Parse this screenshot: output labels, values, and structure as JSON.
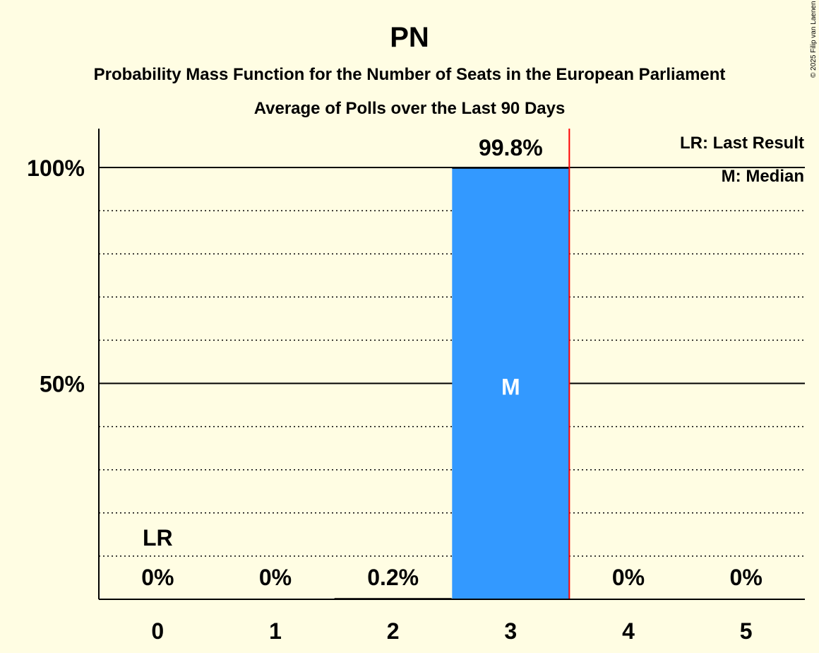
{
  "chart_data": {
    "type": "bar",
    "title": "PN",
    "subtitle": "Probability Mass Function for the Number of Seats in the European Parliament",
    "subtitle2": "Average of Polls over the Last 90 Days",
    "categories": [
      "0",
      "1",
      "2",
      "3",
      "4",
      "5"
    ],
    "values": [
      0,
      0,
      0.2,
      99.8,
      0,
      0
    ],
    "value_labels": [
      "0%",
      "0%",
      "0.2%",
      "99.8%",
      "0%",
      "0%"
    ],
    "ylim": [
      0,
      110
    ],
    "y_ticks": [
      {
        "value": 50,
        "label": "50%"
      },
      {
        "value": 100,
        "label": "100%"
      }
    ],
    "minor_grid": [
      10,
      20,
      30,
      40,
      60,
      70,
      80,
      90
    ],
    "last_result_index": 0,
    "last_result_label": "LR",
    "median_index": 3,
    "median_label": "M",
    "legend": [
      "LR: Last Result",
      "M: Median"
    ],
    "legend_position": "top-right",
    "bar_color": "#3399FF",
    "median_line_color": "#FF0000",
    "background": "#FFFDE3"
  },
  "copyright": "© 2025 Filip van Laenen"
}
